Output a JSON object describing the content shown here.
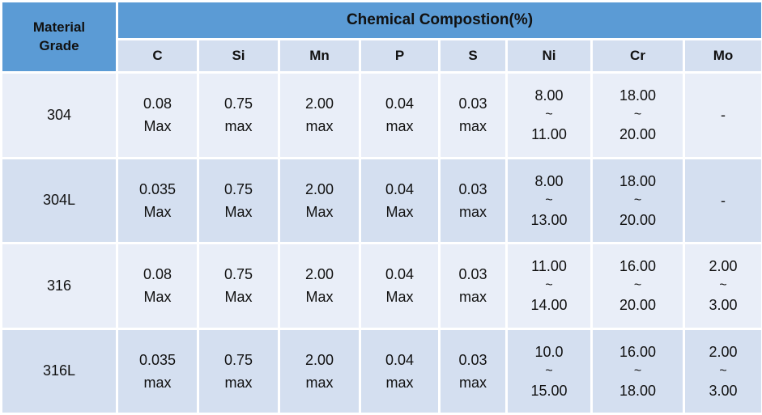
{
  "table": {
    "grade_header_line1": "Material",
    "grade_header_line2": "Grade",
    "main_header": "Chemical Compostion(%)",
    "columns": [
      "C",
      "Si",
      "Mn",
      "P",
      "S",
      "Ni",
      "Cr",
      "Mo"
    ],
    "rows": [
      {
        "grade": "304",
        "C": [
          "0.08",
          "Max"
        ],
        "Si": [
          "0.75",
          "max"
        ],
        "Mn": [
          "2.00",
          "max"
        ],
        "P": [
          "0.04",
          "max"
        ],
        "S": [
          "0.03",
          "max"
        ],
        "Ni": [
          "8.00",
          "~",
          "11.00"
        ],
        "Cr": [
          "18.00",
          "~",
          "20.00"
        ],
        "Mo": [
          "-"
        ]
      },
      {
        "grade": "304L",
        "C": [
          "0.035",
          "Max"
        ],
        "Si": [
          "0.75",
          "Max"
        ],
        "Mn": [
          "2.00",
          "Max"
        ],
        "P": [
          "0.04",
          "Max"
        ],
        "S": [
          "0.03",
          "max"
        ],
        "Ni": [
          "8.00",
          "~",
          "13.00"
        ],
        "Cr": [
          "18.00",
          "~",
          "20.00"
        ],
        "Mo": [
          "-"
        ]
      },
      {
        "grade": "316",
        "C": [
          "0.08",
          "Max"
        ],
        "Si": [
          "0.75",
          "Max"
        ],
        "Mn": [
          "2.00",
          "Max"
        ],
        "P": [
          "0.04",
          "Max"
        ],
        "S": [
          "0.03",
          "max"
        ],
        "Ni": [
          "11.00",
          "~",
          "14.00"
        ],
        "Cr": [
          "16.00",
          "~",
          "20.00"
        ],
        "Mo": [
          "2.00",
          "~",
          "3.00"
        ]
      },
      {
        "grade": "316L",
        "C": [
          "0.035",
          "max"
        ],
        "Si": [
          "0.75",
          "max"
        ],
        "Mn": [
          "2.00",
          "max"
        ],
        "P": [
          "0.04",
          "max"
        ],
        "S": [
          "0.03",
          "max"
        ],
        "Ni": [
          "10.0",
          "~",
          "15.00"
        ],
        "Cr": [
          "16.00",
          "~",
          "18.00"
        ],
        "Mo": [
          "2.00",
          "~",
          "3.00"
        ]
      }
    ]
  },
  "colors": {
    "header_blue": "#5b9bd5",
    "row_light": "#e9eef8",
    "row_dark": "#d4dff0"
  }
}
